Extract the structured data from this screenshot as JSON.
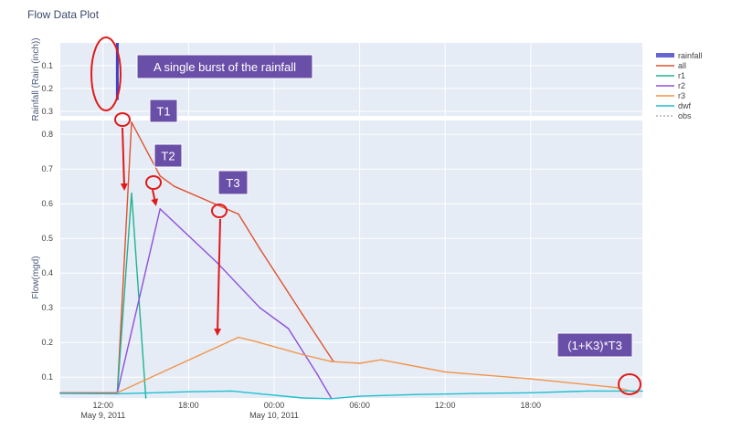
{
  "chart_data": {
    "type": "line",
    "title": "Flow Data Plot",
    "top_panel": {
      "ylabel": "Rainfall (Rain (inch))",
      "ylim": [
        0.32,
        0.0
      ],
      "y_ticks": [
        0.1,
        0.2,
        0.3
      ],
      "y_tick_labels": [
        "0.1",
        "0.2",
        "0.3"
      ]
    },
    "bottom_panel": {
      "ylabel": "Flow(mgd)",
      "ylim": [
        0.04,
        0.84
      ],
      "y_ticks": [
        0.1,
        0.2,
        0.3,
        0.4,
        0.5,
        0.6,
        0.7,
        0.8
      ],
      "y_tick_labels": [
        "0.1",
        "0.2",
        "0.3",
        "0.4",
        "0.5",
        "0.6",
        "0.7",
        "0.8"
      ]
    },
    "xlim": [
      "2011-05-09 09:00",
      "2011-05-11 01:50"
    ],
    "x_ticks": [
      {
        "t": "2011-05-09 12:00",
        "label": "12:00",
        "sub": "May 9, 2011"
      },
      {
        "t": "2011-05-09 18:00",
        "label": "18:00",
        "sub": ""
      },
      {
        "t": "2011-05-10 00:00",
        "label": "00:00",
        "sub": "May 10, 2011"
      },
      {
        "t": "2011-05-10 06:00",
        "label": "06:00",
        "sub": ""
      },
      {
        "t": "2011-05-10 12:00",
        "label": "12:00",
        "sub": ""
      },
      {
        "t": "2011-05-10 18:00",
        "label": "18:00",
        "sub": ""
      }
    ],
    "grid": true,
    "legend_position": "right",
    "series": [
      {
        "name": "rainfall",
        "color": "#4040c8",
        "panel": "top",
        "kind": "bar",
        "x": [
          "2011-05-09 13:00"
        ],
        "y": [
          0.25
        ]
      },
      {
        "name": "all",
        "color": "#e0522f",
        "panel": "bottom",
        "x": [
          "2011-05-09 09:00",
          "2011-05-09 13:00",
          "2011-05-09 14:00",
          "2011-05-09 16:00",
          "2011-05-09 17:00",
          "2011-05-09 21:30",
          "2011-05-09 23:00",
          "2011-05-10 02:00",
          "2011-05-10 04:10"
        ],
        "y": [
          0.055,
          0.055,
          0.835,
          0.68,
          0.65,
          0.57,
          0.47,
          0.28,
          0.145
        ]
      },
      {
        "name": "r1",
        "color": "#1fb393",
        "panel": "bottom",
        "x": [
          "2011-05-09 13:00",
          "2011-05-09 14:00",
          "2011-05-09 15:00"
        ],
        "y": [
          0.055,
          0.63,
          0.04
        ]
      },
      {
        "name": "r2",
        "color": "#8e4fdc",
        "panel": "bottom",
        "x": [
          "2011-05-09 13:00",
          "2011-05-09 16:00",
          "2011-05-09 20:00",
          "2011-05-09 23:00",
          "2011-05-10 01:00",
          "2011-05-10 03:00",
          "2011-05-10 04:00"
        ],
        "y": [
          0.055,
          0.585,
          0.43,
          0.3,
          0.24,
          0.11,
          0.04
        ]
      },
      {
        "name": "r3",
        "color": "#f2944a",
        "panel": "bottom",
        "x": [
          "2011-05-09 13:00",
          "2011-05-09 21:30",
          "2011-05-09 22:30",
          "2011-05-10 02:00",
          "2011-05-10 04:00",
          "2011-05-10 06:00",
          "2011-05-10 07:30",
          "2011-05-10 12:00",
          "2011-05-10 18:00",
          "2011-05-11 00:00",
          "2011-05-11 01:30"
        ],
        "y": [
          0.055,
          0.215,
          0.205,
          0.165,
          0.145,
          0.14,
          0.15,
          0.115,
          0.095,
          0.07,
          0.055
        ]
      },
      {
        "name": "dwf",
        "color": "#1fc0d0",
        "panel": "bottom",
        "x": [
          "2011-05-09 09:00",
          "2011-05-09 13:00",
          "2011-05-09 18:00",
          "2011-05-09 21:00",
          "2011-05-09 23:00",
          "2011-05-10 02:00",
          "2011-05-10 04:00",
          "2011-05-10 06:00",
          "2011-05-10 10:00",
          "2011-05-10 14:00",
          "2011-05-10 18:00",
          "2011-05-10 22:00",
          "2011-05-11 01:50"
        ],
        "y": [
          0.053,
          0.052,
          0.058,
          0.06,
          0.052,
          0.04,
          0.038,
          0.045,
          0.05,
          0.053,
          0.055,
          0.06,
          0.06
        ]
      },
      {
        "name": "obs",
        "color": "#b0b0b0",
        "panel": "bottom",
        "dash": true,
        "x": [],
        "y": []
      }
    ],
    "annotations": [
      {
        "text": "A single burst of the rainfall"
      },
      {
        "text": "T1"
      },
      {
        "text": "T2"
      },
      {
        "text": "T3"
      },
      {
        "text": "(1+K3)*T3"
      }
    ]
  }
}
